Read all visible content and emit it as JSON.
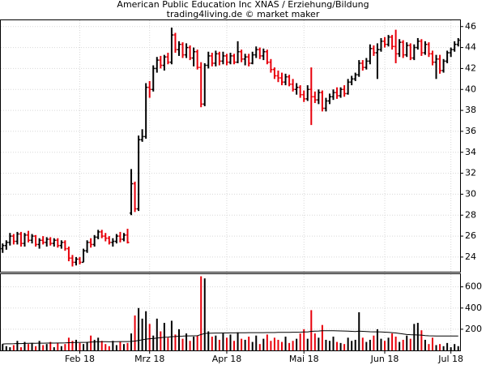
{
  "chart_data": {
    "type": "ohlc",
    "title": "American Public Education Inc XNAS / Erziehung/Bildung",
    "subtitle": "trading4living.de © market maker",
    "categories": [
      null,
      null,
      null,
      null,
      null,
      null,
      null,
      null,
      null,
      null,
      null,
      null,
      null,
      null,
      null,
      null,
      null,
      null,
      null,
      null,
      null,
      "Feb 18",
      null,
      null,
      null,
      null,
      null,
      null,
      null,
      null,
      null,
      null,
      null,
      null,
      null,
      null,
      null,
      null,
      null,
      null,
      "Mrz 18",
      null,
      null,
      null,
      null,
      null,
      null,
      null,
      null,
      null,
      null,
      null,
      null,
      null,
      null,
      null,
      null,
      null,
      null,
      null,
      null,
      "Apr 18",
      null,
      null,
      null,
      null,
      null,
      null,
      null,
      null,
      null,
      null,
      null,
      null,
      null,
      null,
      null,
      null,
      null,
      null,
      null,
      null,
      "Mai 18",
      null,
      null,
      null,
      null,
      null,
      null,
      null,
      null,
      null,
      null,
      null,
      null,
      null,
      null,
      null,
      null,
      null,
      null,
      null,
      null,
      null,
      "Jun 18",
      null,
      null,
      null,
      null,
      null,
      null,
      null,
      null,
      null,
      null,
      null,
      null,
      null,
      null,
      null,
      null,
      null,
      "Jul 18",
      null,
      null
    ],
    "ohlc": [
      [
        24.8,
        25.3,
        24.4,
        25.1
      ],
      [
        25.1,
        25.6,
        24.7,
        25.4
      ],
      [
        25.4,
        26.3,
        25.1,
        26.0
      ],
      [
        26.0,
        26.2,
        25.2,
        25.5
      ],
      [
        25.5,
        26.4,
        25.2,
        26.2
      ],
      [
        26.2,
        26.4,
        25.0,
        25.3
      ],
      [
        25.3,
        26.3,
        25.0,
        26.1
      ],
      [
        26.1,
        26.5,
        25.4,
        25.6
      ],
      [
        25.6,
        26.2,
        25.3,
        26.0
      ],
      [
        26.0,
        26.1,
        25.0,
        25.2
      ],
      [
        25.2,
        25.8,
        24.8,
        25.6
      ],
      [
        25.6,
        26.0,
        25.2,
        25.4
      ],
      [
        25.4,
        25.9,
        25.0,
        25.7
      ],
      [
        25.7,
        25.9,
        25.1,
        25.3
      ],
      [
        25.3,
        25.8,
        25.0,
        25.6
      ],
      [
        25.6,
        25.8,
        24.9,
        25.1
      ],
      [
        25.1,
        25.6,
        24.8,
        25.4
      ],
      [
        25.4,
        25.6,
        24.6,
        24.8
      ],
      [
        24.8,
        25.0,
        23.6,
        23.9
      ],
      [
        23.9,
        24.2,
        23.1,
        23.5
      ],
      [
        23.5,
        24.0,
        23.2,
        23.8
      ],
      [
        23.8,
        24.0,
        23.3,
        23.5
      ],
      [
        23.5,
        24.8,
        23.5,
        24.6
      ],
      [
        24.6,
        25.6,
        24.4,
        25.4
      ],
      [
        25.4,
        25.8,
        24.9,
        25.2
      ],
      [
        25.2,
        26.1,
        25.0,
        25.9
      ],
      [
        25.9,
        26.6,
        25.7,
        26.4
      ],
      [
        26.4,
        26.6,
        25.8,
        26.0
      ],
      [
        26.0,
        26.3,
        25.5,
        25.8
      ],
      [
        25.8,
        26.0,
        25.2,
        25.4
      ],
      [
        25.4,
        25.8,
        25.0,
        25.5
      ],
      [
        25.5,
        26.2,
        25.3,
        26.0
      ],
      [
        26.0,
        26.4,
        25.4,
        25.7
      ],
      [
        25.7,
        26.3,
        25.5,
        26.1
      ],
      [
        26.1,
        26.7,
        25.3,
        25.4
      ],
      [
        28.2,
        32.4,
        28.0,
        31.0
      ],
      [
        31.0,
        31.2,
        28.3,
        28.6
      ],
      [
        28.6,
        35.6,
        28.4,
        35.2
      ],
      [
        35.2,
        36.2,
        35.0,
        35.5
      ],
      [
        35.5,
        40.6,
        35.3,
        40.2
      ],
      [
        40.2,
        40.8,
        39.2,
        40.0
      ],
      [
        40.0,
        42.3,
        39.8,
        42.0
      ],
      [
        42.0,
        43.1,
        41.6,
        42.8
      ],
      [
        42.8,
        43.2,
        42.0,
        42.3
      ],
      [
        42.3,
        43.3,
        41.8,
        43.1
      ],
      [
        43.1,
        43.5,
        42.4,
        42.6
      ],
      [
        42.6,
        45.9,
        42.4,
        45.2
      ],
      [
        45.2,
        45.4,
        43.5,
        43.8
      ],
      [
        43.8,
        44.6,
        43.2,
        44.3
      ],
      [
        44.3,
        44.5,
        43.0,
        43.3
      ],
      [
        43.3,
        44.4,
        43.0,
        44.0
      ],
      [
        44.0,
        44.2,
        42.8,
        43.0
      ],
      [
        43.0,
        44.0,
        42.2,
        43.6
      ],
      [
        43.6,
        43.8,
        41.9,
        42.1
      ],
      [
        42.1,
        42.6,
        38.3,
        38.6
      ],
      [
        38.6,
        42.5,
        38.4,
        42.3
      ],
      [
        42.3,
        43.6,
        42.0,
        43.2
      ],
      [
        43.2,
        43.5,
        42.2,
        42.5
      ],
      [
        42.5,
        43.7,
        42.2,
        43.4
      ],
      [
        43.4,
        43.6,
        42.3,
        42.7
      ],
      [
        42.7,
        43.6,
        42.4,
        43.2
      ],
      [
        43.2,
        43.4,
        42.3,
        42.6
      ],
      [
        42.6,
        43.5,
        42.4,
        43.2
      ],
      [
        43.2,
        43.4,
        42.4,
        42.6
      ],
      [
        42.6,
        44.6,
        42.5,
        43.6
      ],
      [
        43.6,
        43.8,
        42.6,
        42.9
      ],
      [
        42.9,
        43.4,
        42.3,
        43.1
      ],
      [
        43.1,
        43.4,
        42.2,
        42.5
      ],
      [
        42.5,
        43.6,
        42.4,
        43.3
      ],
      [
        43.3,
        44.1,
        43.0,
        43.8
      ],
      [
        43.8,
        44.0,
        42.9,
        43.2
      ],
      [
        43.2,
        43.9,
        42.8,
        43.6
      ],
      [
        43.6,
        43.8,
        42.4,
        42.6
      ],
      [
        42.6,
        42.9,
        41.6,
        41.9
      ],
      [
        41.9,
        42.1,
        41.0,
        41.3
      ],
      [
        41.3,
        41.8,
        40.7,
        41.1
      ],
      [
        41.1,
        41.6,
        40.4,
        40.7
      ],
      [
        40.7,
        41.5,
        40.4,
        41.2
      ],
      [
        41.2,
        41.4,
        40.3,
        40.5
      ],
      [
        40.5,
        41.0,
        39.8,
        40.0
      ],
      [
        40.0,
        40.6,
        39.5,
        40.2
      ],
      [
        40.2,
        40.4,
        39.2,
        39.5
      ],
      [
        39.5,
        39.9,
        38.8,
        39.1
      ],
      [
        39.1,
        40.4,
        38.9,
        40.0
      ],
      [
        40.0,
        42.1,
        36.6,
        39.3
      ],
      [
        39.3,
        39.8,
        38.7,
        39.0
      ],
      [
        39.0,
        40.0,
        38.6,
        39.7
      ],
      [
        39.7,
        39.9,
        37.9,
        38.2
      ],
      [
        38.2,
        39.2,
        37.9,
        38.9
      ],
      [
        38.9,
        39.6,
        38.6,
        39.3
      ],
      [
        39.3,
        40.0,
        39.0,
        39.7
      ],
      [
        39.7,
        40.2,
        39.1,
        39.4
      ],
      [
        39.4,
        40.2,
        39.2,
        40.0
      ],
      [
        40.0,
        40.4,
        39.3,
        39.6
      ],
      [
        39.6,
        41.0,
        39.5,
        40.7
      ],
      [
        40.7,
        41.3,
        40.4,
        41.0
      ],
      [
        41.0,
        41.6,
        40.8,
        41.4
      ],
      [
        41.4,
        42.8,
        41.2,
        42.5
      ],
      [
        42.5,
        42.8,
        41.8,
        42.1
      ],
      [
        42.1,
        43.0,
        41.9,
        42.7
      ],
      [
        42.7,
        44.3,
        42.4,
        43.9
      ],
      [
        43.9,
        44.2,
        43.2,
        43.5
      ],
      [
        43.5,
        44.4,
        41.0,
        43.8
      ],
      [
        43.8,
        44.9,
        43.6,
        44.6
      ],
      [
        44.6,
        45.0,
        44.0,
        44.3
      ],
      [
        44.3,
        45.2,
        44.1,
        45.0
      ],
      [
        45.0,
        45.2,
        43.8,
        44.1
      ],
      [
        44.1,
        45.7,
        42.5,
        43.4
      ],
      [
        43.4,
        44.8,
        43.1,
        44.5
      ],
      [
        44.5,
        44.7,
        43.0,
        43.3
      ],
      [
        43.3,
        44.5,
        43.1,
        44.2
      ],
      [
        44.2,
        44.4,
        42.8,
        43.0
      ],
      [
        43.0,
        44.3,
        42.8,
        44.0
      ],
      [
        44.0,
        44.9,
        43.8,
        44.6
      ],
      [
        44.6,
        44.8,
        43.2,
        43.5
      ],
      [
        43.5,
        44.6,
        43.3,
        44.3
      ],
      [
        44.3,
        44.5,
        43.1,
        43.4
      ],
      [
        43.4,
        43.7,
        42.3,
        42.6
      ],
      [
        42.6,
        43.3,
        41.0,
        42.9
      ],
      [
        42.9,
        43.3,
        41.5,
        41.8
      ],
      [
        41.8,
        42.9,
        41.6,
        42.7
      ],
      [
        42.7,
        43.7,
        42.5,
        43.5
      ],
      [
        43.5,
        44.0,
        43.1,
        43.8
      ],
      [
        43.8,
        44.6,
        43.6,
        44.3
      ],
      [
        44.3,
        44.9,
        44.1,
        44.7
      ]
    ],
    "up_color": "#000000",
    "down_color": "#e8000b",
    "ylim": [
      22.6,
      46.6
    ],
    "yticks": [
      24,
      26,
      28,
      30,
      32,
      34,
      36,
      38,
      40,
      42,
      44,
      46
    ],
    "volume": {
      "values": [
        60,
        40,
        30,
        50,
        90,
        30,
        80,
        60,
        70,
        40,
        90,
        50,
        60,
        80,
        30,
        70,
        40,
        60,
        120,
        90,
        100,
        70,
        60,
        80,
        140,
        100,
        120,
        90,
        60,
        40,
        90,
        50,
        80,
        60,
        70,
        160,
        330,
        400,
        300,
        370,
        250,
        140,
        300,
        180,
        260,
        120,
        280,
        150,
        200,
        110,
        160,
        90,
        130,
        140,
        700,
        680,
        180,
        130,
        140,
        100,
        160,
        120,
        150,
        90,
        170,
        110,
        100,
        130,
        80,
        140,
        60,
        110,
        150,
        90,
        120,
        100,
        80,
        130,
        70,
        90,
        110,
        160,
        200,
        110,
        380,
        160,
        120,
        240,
        100,
        90,
        130,
        80,
        70,
        60,
        120,
        90,
        100,
        360,
        120,
        80,
        100,
        140,
        200,
        110,
        90,
        120,
        160,
        130,
        80,
        100,
        140,
        110,
        250,
        260,
        190,
        100,
        60,
        120,
        50,
        60,
        40,
        70,
        30,
        60,
        40
      ],
      "average": [
        60,
        62,
        62,
        63,
        65,
        64,
        66,
        67,
        68,
        67,
        69,
        68,
        69,
        70,
        69,
        70,
        70,
        71,
        73,
        74,
        75,
        76,
        76,
        77,
        79,
        80,
        81,
        82,
        82,
        81,
        82,
        82,
        83,
        83,
        83,
        85,
        88,
        94,
        100,
        106,
        110,
        112,
        117,
        120,
        124,
        125,
        129,
        131,
        134,
        135,
        137,
        137,
        138,
        139,
        150,
        160,
        162,
        163,
        164,
        164,
        165,
        165,
        166,
        166,
        167,
        167,
        167,
        168,
        168,
        168,
        168,
        168,
        169,
        169,
        169,
        170,
        170,
        170,
        170,
        171,
        171,
        172,
        174,
        174,
        180,
        182,
        183,
        186,
        186,
        186,
        186,
        185,
        184,
        183,
        182,
        180,
        178,
        182,
        180,
        178,
        176,
        175,
        175,
        174,
        172,
        170,
        168,
        165,
        160,
        155,
        150,
        148,
        147,
        146,
        145,
        140,
        138,
        137,
        136,
        136,
        136,
        136,
        136,
        136,
        136
      ],
      "average_color": "#000000",
      "ylim": [
        0,
        720
      ],
      "yticks": [
        200,
        400,
        600
      ]
    }
  }
}
